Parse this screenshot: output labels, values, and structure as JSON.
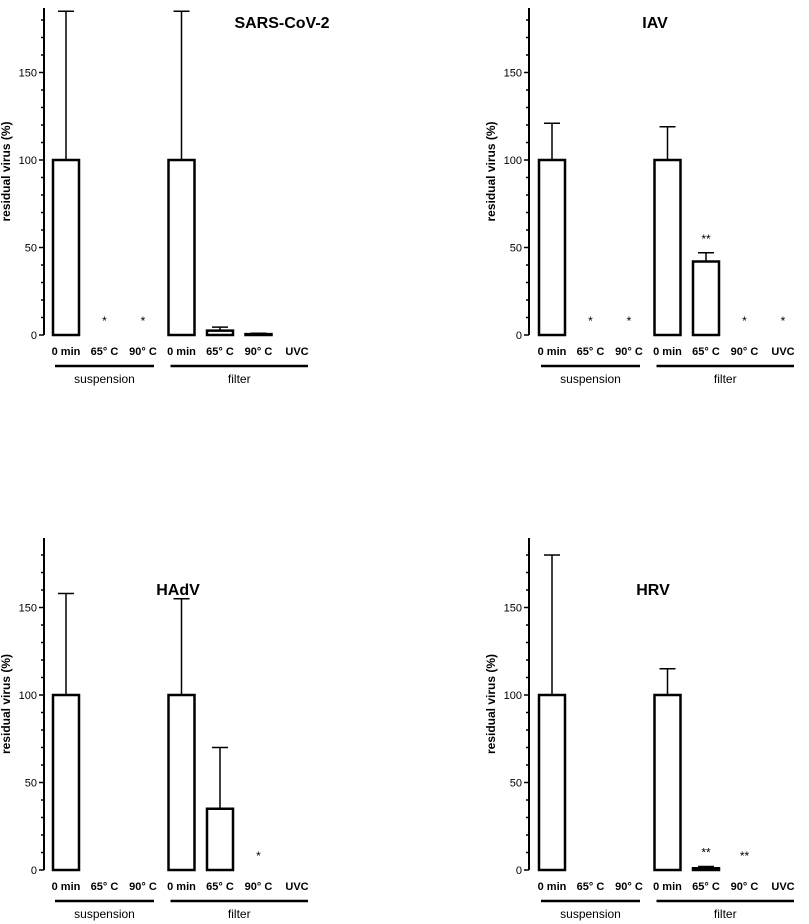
{
  "chart_data": [
    {
      "type": "bar",
      "title": "SARS-CoV-2",
      "ylabel": "residual virus (%)",
      "xlabel": "",
      "ylim": [
        0,
        185
      ],
      "yticks": [
        0,
        50,
        100,
        150
      ],
      "categories": [
        "0 min",
        "65° C",
        "90° C",
        "0 min",
        "65° C",
        "90° C",
        "UVC"
      ],
      "values": [
        100,
        0,
        0,
        100,
        2.5,
        0.5,
        0
      ],
      "errors": [
        85,
        0,
        0,
        85,
        2,
        0.5,
        0
      ],
      "annotations": [
        "",
        "*",
        "*",
        "",
        "",
        "",
        ""
      ],
      "groups": [
        {
          "label": "suspension",
          "start": 0,
          "end": 2
        },
        {
          "label": "filter",
          "start": 3,
          "end": 6
        }
      ]
    },
    {
      "type": "bar",
      "title": "IAV",
      "ylabel": "residual virus (%)",
      "xlabel": "",
      "ylim": [
        0,
        185
      ],
      "yticks": [
        0,
        50,
        100,
        150
      ],
      "categories": [
        "0 min",
        "65° C",
        "90° C",
        "0 min",
        "65° C",
        "90° C",
        "UVC"
      ],
      "values": [
        100,
        0,
        0,
        100,
        42,
        0,
        0
      ],
      "errors": [
        21,
        0,
        0,
        19,
        5,
        0,
        0
      ],
      "annotations": [
        "",
        "*",
        "*",
        "",
        "**",
        "*",
        "*"
      ],
      "groups": [
        {
          "label": "suspension",
          "start": 0,
          "end": 2
        },
        {
          "label": "filter",
          "start": 3,
          "end": 6
        }
      ]
    },
    {
      "type": "bar",
      "title": "HAdV",
      "ylabel": "residual virus (%)",
      "xlabel": "",
      "ylim": [
        0,
        190
      ],
      "yticks": [
        0,
        50,
        100,
        150
      ],
      "categories": [
        "0 min",
        "65° C",
        "90° C",
        "0 min",
        "65° C",
        "90° C",
        "UVC"
      ],
      "values": [
        100,
        0,
        0,
        100,
        35,
        0,
        0
      ],
      "errors": [
        58,
        0,
        0,
        55,
        35,
        0,
        0
      ],
      "annotations": [
        "",
        "",
        "",
        "",
        "",
        "*",
        ""
      ],
      "groups": [
        {
          "label": "suspension",
          "start": 0,
          "end": 2
        },
        {
          "label": "filter",
          "start": 3,
          "end": 6
        }
      ]
    },
    {
      "type": "bar",
      "title": "HRV",
      "ylabel": "residual virus (%)",
      "xlabel": "",
      "ylim": [
        0,
        190
      ],
      "yticks": [
        0,
        50,
        100,
        150
      ],
      "categories": [
        "0 min",
        "65° C",
        "90° C",
        "0 min",
        "65° C",
        "90° C",
        "UVC"
      ],
      "values": [
        100,
        0,
        0,
        100,
        1,
        0,
        0
      ],
      "errors": [
        80,
        0,
        0,
        15,
        1,
        0,
        0
      ],
      "annotations": [
        "",
        "",
        "",
        "",
        "**",
        "**",
        ""
      ],
      "groups": [
        {
          "label": "suspension",
          "start": 0,
          "end": 2
        },
        {
          "label": "filter",
          "start": 3,
          "end": 6
        }
      ]
    }
  ]
}
